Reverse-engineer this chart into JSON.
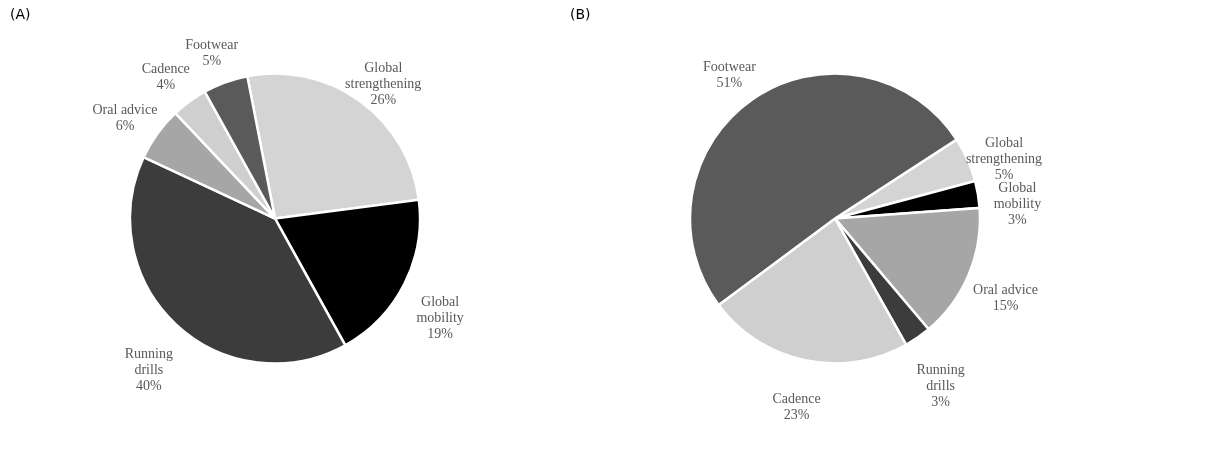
{
  "chart_data": [
    {
      "type": "pie",
      "title": "(A)",
      "categories": [
        "Global strengthening",
        "Global mobility",
        "Running drills",
        "Oral advice",
        "Cadence",
        "Footwear"
      ],
      "values": [
        26,
        19,
        40,
        6,
        4,
        5
      ],
      "colors": [
        "#d4d4d4",
        "#000000",
        "#3c3c3c",
        "#a6a6a6",
        "#cfcfcf",
        "#5a5a5a"
      ],
      "value_labels": [
        "26%",
        "19%",
        "40%",
        "6%",
        "4%",
        "5%"
      ],
      "legend": false
    },
    {
      "type": "pie",
      "title": "(B)",
      "categories": [
        "Global strengthening",
        "Global mobility",
        "Oral advice",
        "Running drills",
        "Cadence",
        "Footwear"
      ],
      "values": [
        5,
        3,
        15,
        3,
        23,
        51
      ],
      "colors": [
        "#d4d4d4",
        "#000000",
        "#a6a6a6",
        "#3c3c3c",
        "#cfcfcf",
        "#5a5a5a"
      ],
      "value_labels": [
        "5%",
        "3%",
        "15%",
        "3%",
        "23%",
        "51%"
      ],
      "legend": false
    }
  ]
}
